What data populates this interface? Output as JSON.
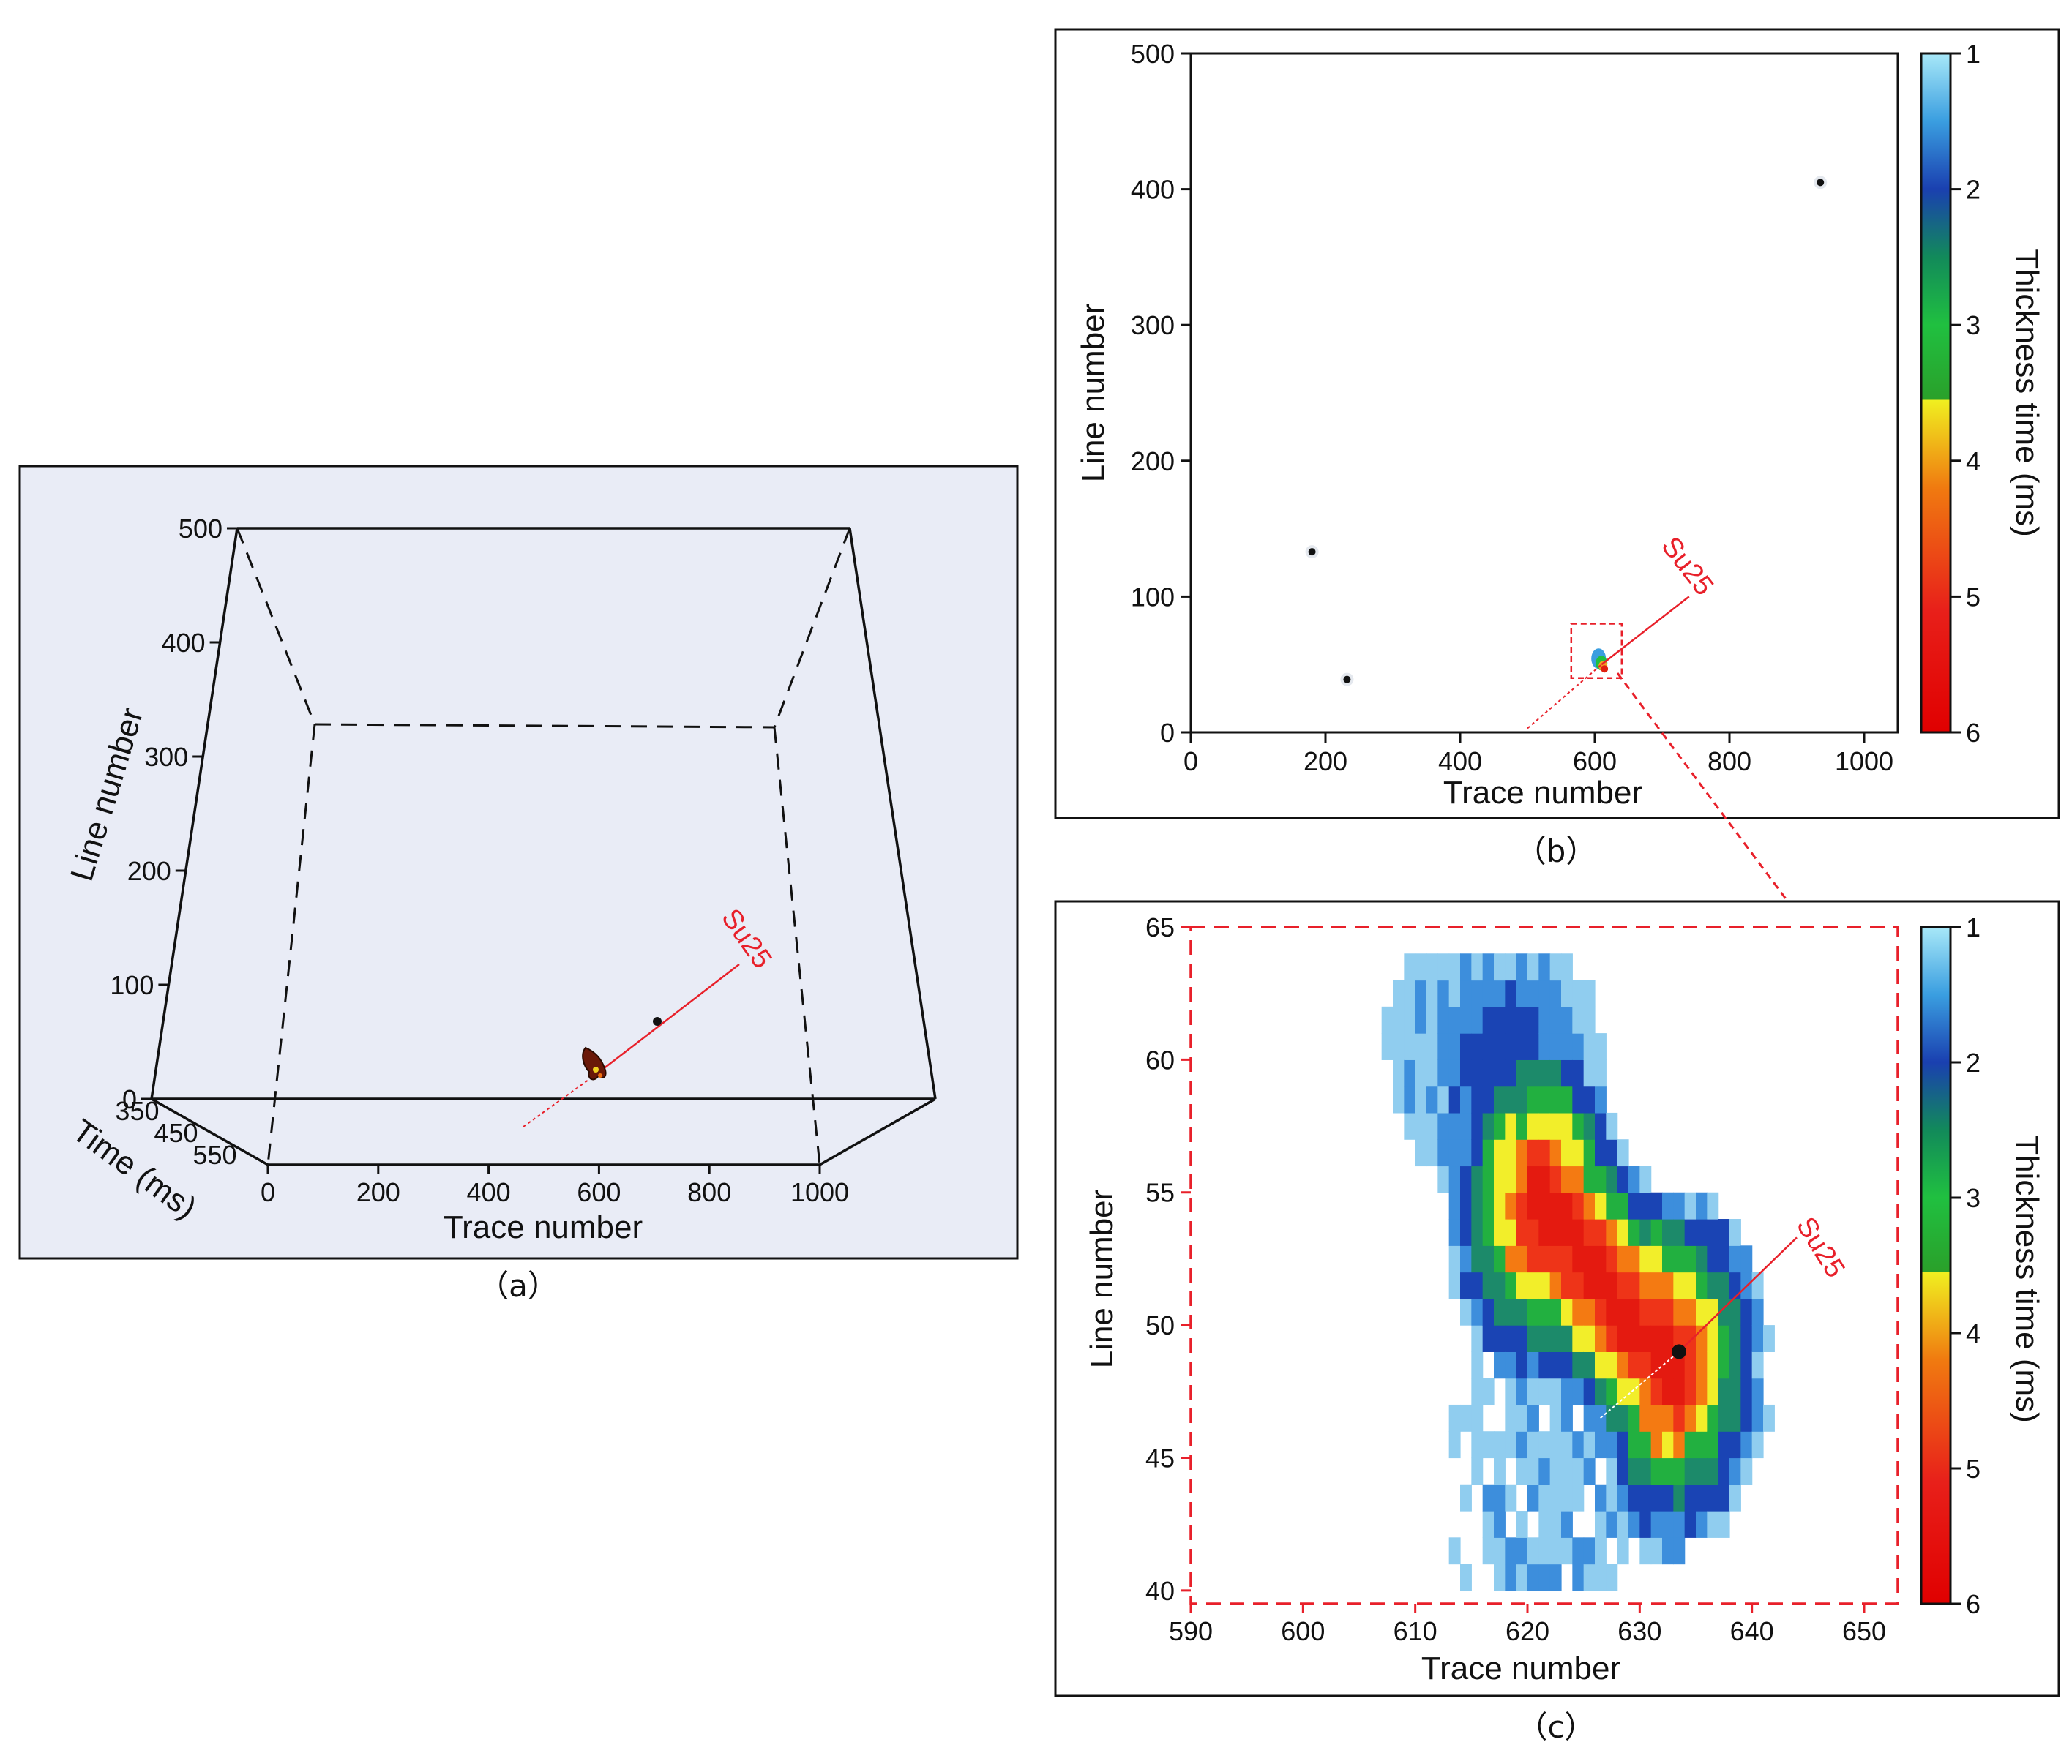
{
  "colors": {
    "panel_a_bg": "#e9ecf6",
    "well_red": "#e8202a",
    "frame": "#111111"
  },
  "panels": {
    "a": {
      "caption": "（a）",
      "type": "3d-volume",
      "x_label": "Trace number",
      "x_ticks": [
        "0",
        "200",
        "400",
        "600",
        "800",
        "1000"
      ],
      "y_label": "Line number",
      "y_ticks": [
        "0",
        "100",
        "200",
        "300",
        "400",
        "500"
      ],
      "z_label": "Time (ms)",
      "z_ticks": [
        "350",
        "450",
        "550"
      ],
      "well_label": "Su25"
    },
    "b": {
      "caption": "（b）",
      "x_label": "Trace number",
      "x_ticks": [
        "0",
        "200",
        "400",
        "600",
        "800",
        "1000"
      ],
      "y_label": "Line number",
      "y_ticks": [
        "0",
        "100",
        "200",
        "300",
        "400",
        "500"
      ],
      "colorbar_label": "Thickness time (ms)",
      "colorbar_ticks": [
        "1",
        "2",
        "3",
        "4",
        "5",
        "6"
      ],
      "well_label": "Su25"
    },
    "c": {
      "caption": "（c）",
      "x_label": "Trace number",
      "x_ticks": [
        "590",
        "600",
        "610",
        "620",
        "630",
        "640",
        "650"
      ],
      "y_label": "Line number",
      "y_ticks": [
        "40",
        "45",
        "50",
        "55",
        "60",
        "65"
      ],
      "colorbar_label": "Thickness time (ms)",
      "colorbar_ticks": [
        "1",
        "2",
        "3",
        "4",
        "5",
        "6"
      ],
      "well_label": "Su25"
    }
  },
  "chart_data": [
    {
      "panel": "a",
      "type": "scatter",
      "xlim": [
        0,
        1000
      ],
      "ylim": [
        0,
        500
      ],
      "zlim": [
        350,
        550
      ],
      "points": [
        {
          "x": 590,
          "y": 30,
          "z": 450,
          "value": 5
        }
      ]
    },
    {
      "panel": "b",
      "type": "scatter",
      "xlim": [
        0,
        1050
      ],
      "ylim": [
        0,
        500
      ],
      "points": [
        {
          "x": 180,
          "y": 133
        },
        {
          "x": 232,
          "y": 39
        },
        {
          "x": 935,
          "y": 405
        },
        {
          "x": 610,
          "y": 50,
          "value": 5
        }
      ],
      "highlight_box": {
        "x": [
          565,
          640
        ],
        "y": [
          40,
          80
        ]
      },
      "colorbar_range": [
        1,
        6
      ]
    },
    {
      "panel": "c",
      "type": "heatmap",
      "xlim": [
        590,
        653
      ],
      "ylim": [
        39.5,
        65
      ],
      "colorbar_range": [
        1,
        6
      ],
      "value_label": "Thickness time (ms)",
      "well_point": {
        "x": 633.5,
        "y": 49
      }
    }
  ]
}
